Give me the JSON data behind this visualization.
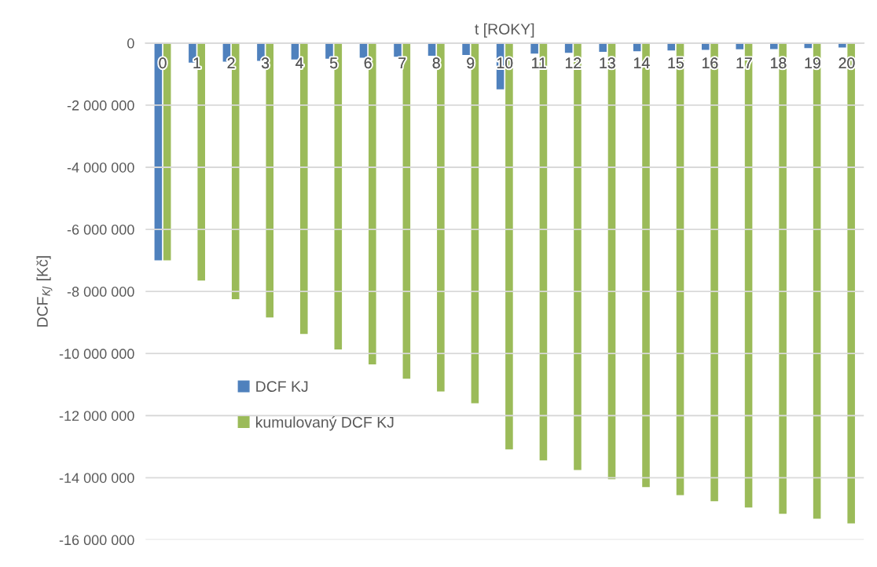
{
  "chart_data": {
    "type": "bar",
    "xlabel": "t [ROKY]",
    "ylabel": "DCF$_{KJ}$ [Kč]",
    "categories": [
      "0",
      "1",
      "2",
      "3",
      "4",
      "5",
      "6",
      "7",
      "8",
      "9",
      "10",
      "11",
      "12",
      "13",
      "14",
      "15",
      "16",
      "17",
      "18",
      "19",
      "20"
    ],
    "series": [
      {
        "name": "DCF KJ",
        "color": "#4f81bd",
        "values": [
          -7000000,
          -630000,
          -600000,
          -570000,
          -530000,
          -500000,
          -470000,
          -440000,
          -410000,
          -380000,
          -1490000,
          -340000,
          -310000,
          -280000,
          -260000,
          -240000,
          -220000,
          -200000,
          -190000,
          -160000,
          -140000
        ]
      },
      {
        "name": "kumulovaný DCF KJ",
        "color": "#9bbb59",
        "values": [
          -7000000,
          -7650000,
          -8250000,
          -8840000,
          -9370000,
          -9870000,
          -10350000,
          -10810000,
          -11220000,
          -11600000,
          -13090000,
          -13440000,
          -13750000,
          -14050000,
          -14300000,
          -14560000,
          -14760000,
          -14960000,
          -15160000,
          -15320000,
          -15470000
        ]
      }
    ],
    "ylim": [
      -16000000,
      0
    ],
    "yticks": [
      {
        "value": 0,
        "label": "0"
      },
      {
        "value": -2000000,
        "label": "-2 000 000"
      },
      {
        "value": -4000000,
        "label": "-4 000 000"
      },
      {
        "value": -6000000,
        "label": "-6 000 000"
      },
      {
        "value": -8000000,
        "label": "-8 000 000"
      },
      {
        "value": -10000000,
        "label": "-10 000 000"
      },
      {
        "value": -12000000,
        "label": "-12 000 000"
      },
      {
        "value": -14000000,
        "label": "-14 000 000"
      },
      {
        "value": -16000000,
        "label": "-16 000 000"
      }
    ],
    "grid": "y",
    "legend": "left"
  }
}
